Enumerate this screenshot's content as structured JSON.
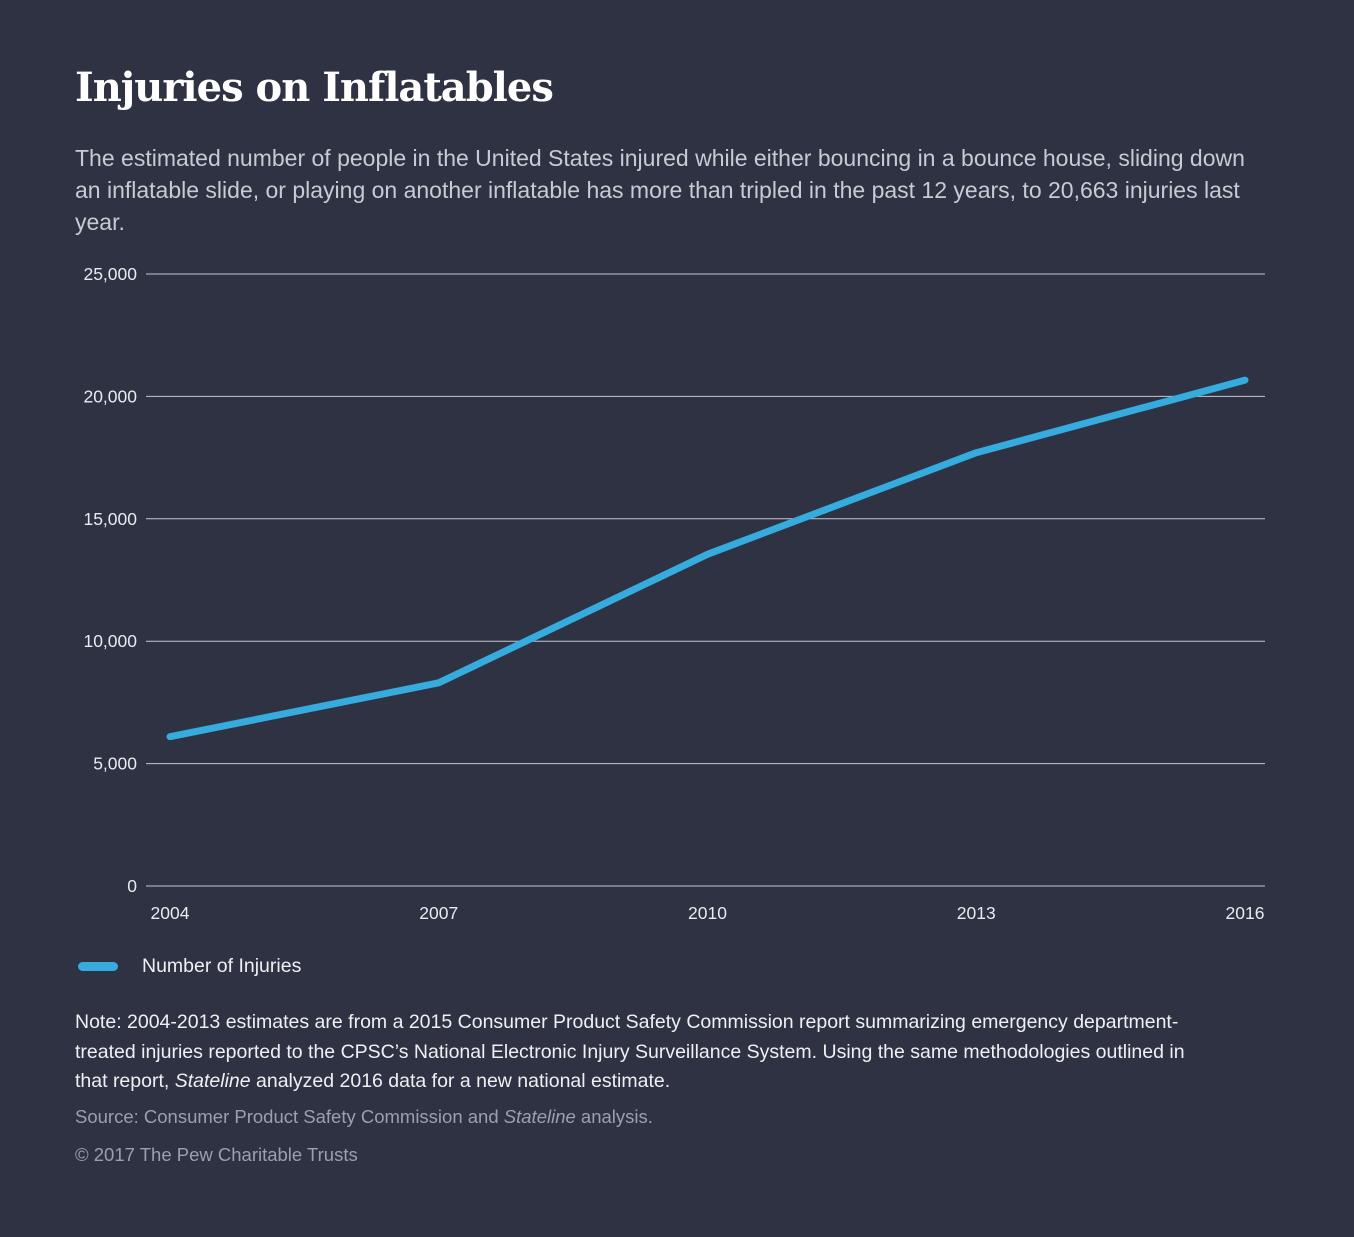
{
  "page": {
    "title": "Injuries on Inflatables",
    "subtitle": "The estimated number of people in the United States injured while either bouncing in a bounce house, sliding down an inflatable slide, or playing on another inflatable has more than tripled in the past 12 years, to 20,663 injuries last year."
  },
  "colors": {
    "background": "#2e3243",
    "line": "#35abde",
    "gridline": "#c3c8d2",
    "title_text": "#ffffff",
    "subtitle_text": "#c7cbd3",
    "axis_text": "#e8ebf0",
    "muted_text": "#9aa0ae"
  },
  "chart_data": {
    "type": "line",
    "title": "Injuries on Inflatables",
    "x": [
      2004,
      2007,
      2010,
      2013,
      2016
    ],
    "series": [
      {
        "name": "Number of Injuries",
        "values": [
          6100,
          8300,
          13550,
          17700,
          20663
        ]
      }
    ],
    "x_tick_labels": [
      "2004",
      "2007",
      "2010",
      "2013",
      "2016"
    ],
    "y_ticks": [
      {
        "value": 0,
        "label": "0"
      },
      {
        "value": 5000,
        "label": "5,000"
      },
      {
        "value": 10000,
        "label": "10,000"
      },
      {
        "value": 15000,
        "label": "15,000"
      },
      {
        "value": 20000,
        "label": "20,000"
      },
      {
        "value": 25000,
        "label": "25,000"
      }
    ],
    "xlim": [
      2004,
      2016
    ],
    "ylim": [
      0,
      25000
    ],
    "xlabel": "",
    "ylabel": "",
    "grid": "horizontal",
    "legend_position": "bottom-left",
    "line_color": "#35abde"
  },
  "legend": {
    "label": "Number of Injuries"
  },
  "note": {
    "prefix": "Note: 2004-2013 estimates are from a 2015 Consumer Product Safety Commission report summarizing emergency department-treated injuries reported to the CPSC’s National Electronic Injury Surveillance System. Using the same methodologies outlined in that report, ",
    "italic": "Stateline",
    "suffix": " analyzed 2016 data for a new national estimate."
  },
  "source": {
    "prefix": "Source: Consumer Product Safety Commission and ",
    "italic": "Stateline",
    "suffix": " analysis."
  },
  "copyright": "© 2017 The Pew Charitable Trusts"
}
